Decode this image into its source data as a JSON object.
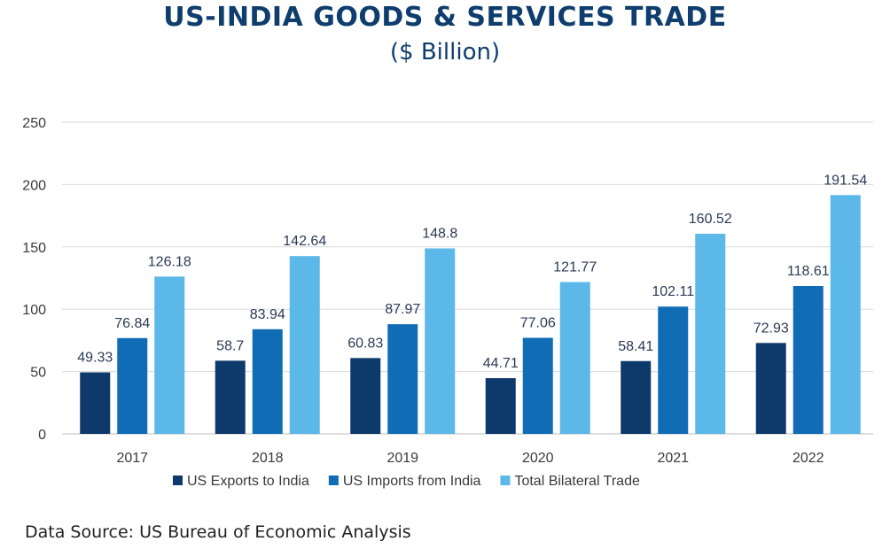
{
  "title": "US-INDIA GOODS & SERVICES TRADE",
  "subtitle": "($ Billion)",
  "source": "Data Source: US Bureau of Economic Analysis",
  "chart_data": {
    "type": "bar",
    "categories": [
      "2017",
      "2018",
      "2019",
      "2020",
      "2021",
      "2022"
    ],
    "series": [
      {
        "name": "US Exports to India",
        "color": "#0e3a6b",
        "values": [
          49.33,
          58.7,
          60.83,
          44.71,
          58.41,
          72.93
        ],
        "labels": [
          "49.33",
          "58.7",
          "60.83",
          "44.71",
          "58.41",
          "72.93"
        ]
      },
      {
        "name": "US Imports from India",
        "color": "#0f6cb5",
        "values": [
          76.84,
          83.94,
          87.97,
          77.06,
          102.11,
          118.61
        ],
        "labels": [
          "76.84",
          "83.94",
          "87.97",
          "77.06",
          "102.11",
          "118.61"
        ]
      },
      {
        "name": "Total Bilateral Trade",
        "color": "#5bb8e8",
        "values": [
          126.18,
          142.64,
          148.8,
          121.77,
          160.52,
          191.54
        ],
        "labels": [
          "126.18",
          "142.64",
          "148.8",
          "121.77",
          "160.52",
          "191.54"
        ]
      }
    ],
    "ylim": [
      0,
      250
    ],
    "yticks": [
      "0",
      "50",
      "100",
      "150",
      "200",
      "250"
    ],
    "grid": true,
    "legend": "bottom"
  }
}
